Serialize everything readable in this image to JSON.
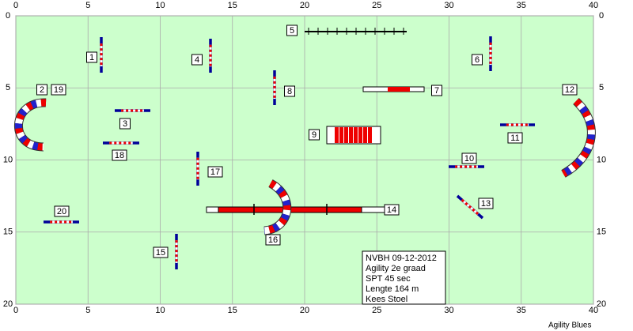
{
  "axes": {
    "xlim": [
      0,
      40
    ],
    "ylim": [
      0,
      20
    ],
    "xticks": [
      0,
      5,
      10,
      15,
      20,
      25,
      30,
      35,
      40
    ],
    "yticks": [
      0,
      5,
      10,
      15,
      20
    ]
  },
  "obstacles": [
    {
      "label": "1"
    },
    {
      "label": "2"
    },
    {
      "label": "19"
    },
    {
      "label": "3"
    },
    {
      "label": "4"
    },
    {
      "label": "5"
    },
    {
      "label": "6"
    },
    {
      "label": "7"
    },
    {
      "label": "8"
    },
    {
      "label": "9"
    },
    {
      "label": "10"
    },
    {
      "label": "11"
    },
    {
      "label": "12"
    },
    {
      "label": "13"
    },
    {
      "label": "14"
    },
    {
      "label": "15"
    },
    {
      "label": "16"
    },
    {
      "label": "17"
    },
    {
      "label": "18"
    },
    {
      "label": "20"
    }
  ],
  "info": [
    "NVBH 09-12-2012",
    "Agility 2e graad",
    "SPT 45 sec",
    "Lengte 164 m",
    "Kees Stoel"
  ],
  "footer": "Agility Blues"
}
